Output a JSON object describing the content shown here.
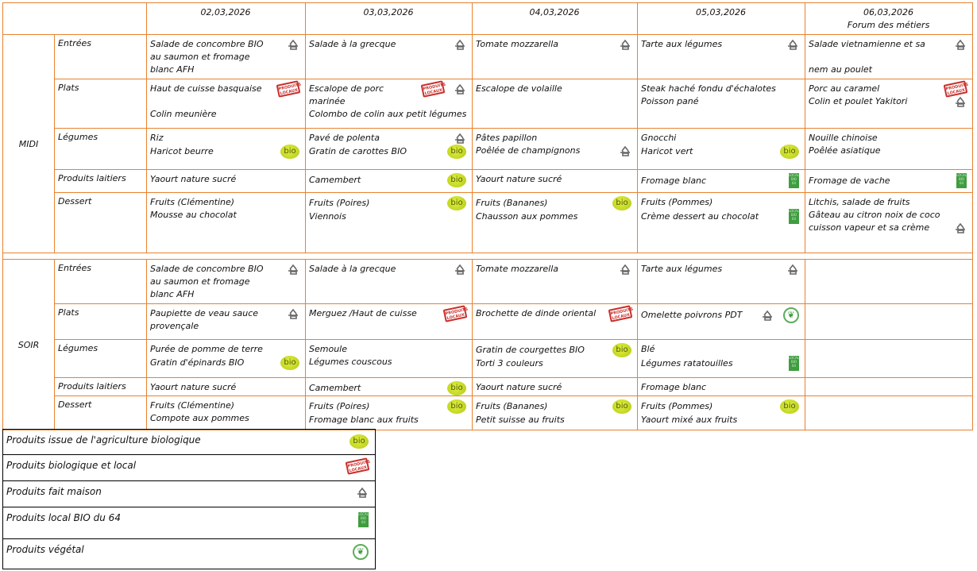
{
  "days": [
    "02,03,2026",
    "03,03,2026",
    "04,03,2026",
    "05,03,2026",
    "06,03,2026"
  ],
  "day_notes": [
    "",
    "",
    "",
    "",
    "Forum des métiers"
  ],
  "icon_types": {
    "house": "fait-maison",
    "bio": "bio",
    "stamp": "produits-locaux",
    "local": "local-bio-64",
    "veg": "vegetal"
  },
  "meals": [
    {
      "label": "MIDI",
      "courses": [
        {
          "label": "Entrées",
          "days": [
            {
              "lines": [
                "Salade de concombre BIO",
                "au saumon et fromage",
                "blanc AFH"
              ],
              "icons": [
                {
                  "type": "house",
                  "line": 0
                }
              ]
            },
            {
              "lines": [
                "Salade à la grecque"
              ],
              "icons": [
                {
                  "type": "house",
                  "line": 0
                }
              ]
            },
            {
              "lines": [
                "Tomate mozzarella"
              ],
              "icons": [
                {
                  "type": "house",
                  "line": 0
                }
              ]
            },
            {
              "lines": [
                "Tarte aux légumes"
              ],
              "icons": [
                {
                  "type": "house",
                  "line": 0
                }
              ]
            },
            {
              "lines": [
                "Salade vietnamienne et sa",
                "",
                "nem au poulet"
              ],
              "icons": [
                {
                  "type": "house",
                  "line": 0
                }
              ]
            }
          ]
        },
        {
          "label": "Plats",
          "days": [
            {
              "lines": [
                "Haut de cuisse basquaise",
                "",
                "Colin meunière"
              ],
              "icons": [
                {
                  "type": "stamp",
                  "line": 0
                }
              ]
            },
            {
              "lines": [
                "Escalope de porc",
                "marinée",
                "Colombo de colin aux petit légumes"
              ],
              "icons": [
                {
                  "type": "stamp",
                  "line": 0
                },
                {
                  "type": "house",
                  "line": 0
                }
              ]
            },
            {
              "lines": [
                "Escalope de volaille"
              ],
              "icons": []
            },
            {
              "lines": [
                "Steak haché fondu d'échalotes",
                "Poisson pané"
              ],
              "icons": []
            },
            {
              "lines": [
                "Porc au caramel",
                "Colin et poulet Yakitori"
              ],
              "icons": [
                {
                  "type": "stamp",
                  "line": 0
                },
                {
                  "type": "house",
                  "line": 1
                }
              ]
            }
          ]
        },
        {
          "label": "Légumes",
          "days": [
            {
              "lines": [
                "Riz",
                "Haricot beurre"
              ],
              "icons": [
                {
                  "type": "bio",
                  "line": 1
                }
              ]
            },
            {
              "lines": [
                "Pavé de polenta",
                "Gratin de carottes BIO"
              ],
              "icons": [
                {
                  "type": "house",
                  "line": 0
                },
                {
                  "type": "bio",
                  "line": 1
                }
              ]
            },
            {
              "lines": [
                "Pâtes papillon",
                "Poêlée de champignons"
              ],
              "icons": [
                {
                  "type": "house",
                  "line": 1
                }
              ]
            },
            {
              "lines": [
                "Gnocchi",
                "Haricot vert"
              ],
              "icons": [
                {
                  "type": "bio",
                  "line": 1
                }
              ]
            },
            {
              "lines": [
                "Nouille chinoise",
                "Poêlée asiatique"
              ],
              "icons": []
            }
          ]
        },
        {
          "label": "Produits laitiers",
          "days": [
            {
              "lines": [
                "Yaourt nature sucré"
              ],
              "icons": []
            },
            {
              "lines": [
                "Camembert"
              ],
              "icons": [
                {
                  "type": "bio",
                  "line": 0
                }
              ]
            },
            {
              "lines": [
                "Yaourt nature sucré"
              ],
              "icons": []
            },
            {
              "lines": [
                "Fromage blanc"
              ],
              "icons": [
                {
                  "type": "local",
                  "line": 0
                }
              ]
            },
            {
              "lines": [
                "Fromage de vache"
              ],
              "icons": [
                {
                  "type": "local",
                  "line": 0
                }
              ]
            }
          ]
        },
        {
          "label": "Dessert",
          "days": [
            {
              "lines": [
                "Fruits (Clémentine)",
                "Mousse au chocolat"
              ],
              "icons": []
            },
            {
              "lines": [
                "Fruits (Poires)",
                "Viennois"
              ],
              "icons": [
                {
                  "type": "bio",
                  "line": 0
                }
              ]
            },
            {
              "lines": [
                "Fruits (Bananes)",
                "Chausson aux pommes"
              ],
              "icons": [
                {
                  "type": "bio",
                  "line": 0
                }
              ]
            },
            {
              "lines": [
                "Fruits (Pommes)",
                "Crème dessert au chocolat"
              ],
              "icons": [
                {
                  "type": "local",
                  "line": 1
                }
              ]
            },
            {
              "lines": [
                "Litchis, salade de fruits",
                "Gâteau au citron noix de coco",
                "cuisson vapeur et sa crème"
              ],
              "icons": [
                {
                  "type": "house",
                  "line": 2
                }
              ]
            }
          ]
        }
      ]
    },
    {
      "label": "SOIR",
      "courses": [
        {
          "label": "Entrées",
          "days": [
            {
              "lines": [
                "Salade de concombre BIO",
                "au saumon et fromage",
                "blanc AFH"
              ],
              "icons": [
                {
                  "type": "house",
                  "line": 0
                }
              ]
            },
            {
              "lines": [
                "Salade à la grecque"
              ],
              "icons": [
                {
                  "type": "house",
                  "line": 0
                }
              ]
            },
            {
              "lines": [
                "Tomate mozzarella"
              ],
              "icons": [
                {
                  "type": "house",
                  "line": 0
                }
              ]
            },
            {
              "lines": [
                "Tarte aux légumes"
              ],
              "icons": [
                {
                  "type": "house",
                  "line": 0
                }
              ]
            },
            {
              "lines": [],
              "icons": []
            }
          ]
        },
        {
          "label": "Plats",
          "days": [
            {
              "lines": [
                "Paupiette de veau sauce",
                "provençale"
              ],
              "icons": [
                {
                  "type": "house",
                  "line": 0
                }
              ]
            },
            {
              "lines": [
                "Merguez /Haut de cuisse"
              ],
              "icons": [
                {
                  "type": "stamp",
                  "line": 0
                }
              ]
            },
            {
              "lines": [
                "Brochette de dinde oriental"
              ],
              "icons": [
                {
                  "type": "stamp",
                  "line": 0
                }
              ]
            },
            {
              "lines": [
                "Omelette poivrons PDT"
              ],
              "icons": [
                {
                  "type": "house",
                  "line": 0
                },
                {
                  "type": "veg",
                  "line": 0
                }
              ]
            },
            {
              "lines": [],
              "icons": []
            }
          ]
        },
        {
          "label": "Légumes",
          "days": [
            {
              "lines": [
                "Purée de pomme de terre",
                "Gratin d'épinards BIO"
              ],
              "icons": [
                {
                  "type": "bio",
                  "line": 1
                }
              ]
            },
            {
              "lines": [
                "Semoule",
                "Légumes couscous"
              ],
              "icons": []
            },
            {
              "lines": [
                "Gratin de courgettes BIO",
                "Torti 3 couleurs"
              ],
              "icons": [
                {
                  "type": "bio",
                  "line": 0
                }
              ]
            },
            {
              "lines": [
                "Blé",
                "Légumes ratatouilles"
              ],
              "icons": [
                {
                  "type": "local",
                  "line": 1
                }
              ]
            },
            {
              "lines": [],
              "icons": []
            }
          ]
        },
        {
          "label": "Produits laitiers",
          "days": [
            {
              "lines": [
                "Yaourt nature sucré"
              ],
              "icons": []
            },
            {
              "lines": [
                "Camembert"
              ],
              "icons": [
                {
                  "type": "bio",
                  "line": 0
                }
              ]
            },
            {
              "lines": [
                "Yaourt nature sucré"
              ],
              "icons": []
            },
            {
              "lines": [
                "Fromage blanc"
              ],
              "icons": []
            },
            {
              "lines": [],
              "icons": []
            }
          ]
        },
        {
          "label": "Dessert",
          "days": [
            {
              "lines": [
                "Fruits (Clémentine)",
                "Compote aux pommes"
              ],
              "icons": []
            },
            {
              "lines": [
                "Fruits (Poires)",
                "Fromage blanc aux fruits"
              ],
              "icons": [
                {
                  "type": "bio",
                  "line": 0
                }
              ]
            },
            {
              "lines": [
                "Fruits (Bananes)",
                "Petit  suisse au fruits"
              ],
              "icons": [
                {
                  "type": "bio",
                  "line": 0
                }
              ]
            },
            {
              "lines": [
                "Fruits (Pommes)",
                "Yaourt mixé aux fruits"
              ],
              "icons": [
                {
                  "type": "bio",
                  "line": 0
                }
              ]
            },
            {
              "lines": [],
              "icons": []
            }
          ]
        }
      ]
    }
  ],
  "legend": [
    {
      "label": "Produits issue de l'agriculture biologique",
      "icon": "bio"
    },
    {
      "label": "Produits biologique et local",
      "icon": "stamp"
    },
    {
      "label": "Produits fait maison",
      "icon": "house"
    },
    {
      "label": "Produits local BIO du 64",
      "icon": "local"
    },
    {
      "label": "Produits végétal",
      "icon": "veg"
    }
  ],
  "colors": {
    "grid": "#e8822f",
    "bio": "#c8db2a",
    "stamp": "#c9302c",
    "local": "#3f9d3f"
  }
}
